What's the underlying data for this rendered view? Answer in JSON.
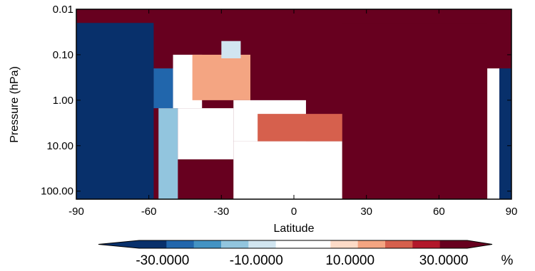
{
  "chart_data": {
    "type": "heatmap",
    "xlabel": "Latitude",
    "ylabel": "Pressure (hPa)",
    "x_ticks": [
      "-90",
      "-60",
      "-30",
      "0",
      "30",
      "60",
      "90"
    ],
    "x_tick_values": [
      -90,
      -60,
      -30,
      0,
      30,
      60,
      90
    ],
    "xlim": [
      -90,
      90
    ],
    "y_ticks": [
      "0.01",
      "0.10",
      "1.00",
      "10.00",
      "100.00"
    ],
    "y_tick_values": [
      0.01,
      0.1,
      1,
      10,
      100
    ],
    "ylim": [
      0.01,
      150
    ],
    "y_scale": "log",
    "y_inverted": true,
    "colorbar": {
      "orientation": "horizontal",
      "placement": "bottom",
      "labels": [
        "-30.0000",
        "-10.0000",
        "10.0000",
        "30.0000"
      ],
      "label_values": [
        -30,
        -10,
        10,
        30
      ],
      "unit": "%",
      "range": [
        -35,
        35
      ],
      "colors": [
        "#08306b",
        "#2166ac",
        "#4393c3",
        "#92c5de",
        "#d1e5f0",
        "#ffffff",
        "#ffffff",
        "#fddbc7",
        "#f4a582",
        "#d6604d",
        "#b2182b",
        "#67001f"
      ]
    },
    "regions": [
      {
        "lat": [
          -90,
          -58
        ],
        "p": [
          0.02,
          150
        ],
        "value": -35
      },
      {
        "lat": [
          -58,
          -50
        ],
        "p": [
          0.2,
          1.5
        ],
        "value": -25
      },
      {
        "lat": [
          -56,
          -48
        ],
        "p": [
          1.5,
          150
        ],
        "value": -12
      },
      {
        "lat": [
          -50,
          -38
        ],
        "p": [
          0.1,
          1.5
        ],
        "value": 2
      },
      {
        "lat": [
          -48,
          -25
        ],
        "p": [
          1.5,
          20
        ],
        "value": 0
      },
      {
        "lat": [
          -42,
          -18
        ],
        "p": [
          0.1,
          1
        ],
        "value": 15
      },
      {
        "lat": [
          -30,
          -22
        ],
        "p": [
          0.05,
          0.12
        ],
        "value": -10
      },
      {
        "lat": [
          -25,
          5
        ],
        "p": [
          1,
          8
        ],
        "value": 5
      },
      {
        "lat": [
          -25,
          20
        ],
        "p": [
          8,
          150
        ],
        "value": 0
      },
      {
        "lat": [
          -15,
          25
        ],
        "p": [
          2,
          8
        ],
        "value": 22
      },
      {
        "lat": [
          20,
          80
        ],
        "p": [
          0.02,
          150
        ],
        "value": 35
      },
      {
        "lat": [
          80,
          85
        ],
        "p": [
          0.2,
          150
        ],
        "value": 0
      },
      {
        "lat": [
          85,
          90
        ],
        "p": [
          0.2,
          150
        ],
        "value": -35
      }
    ]
  }
}
